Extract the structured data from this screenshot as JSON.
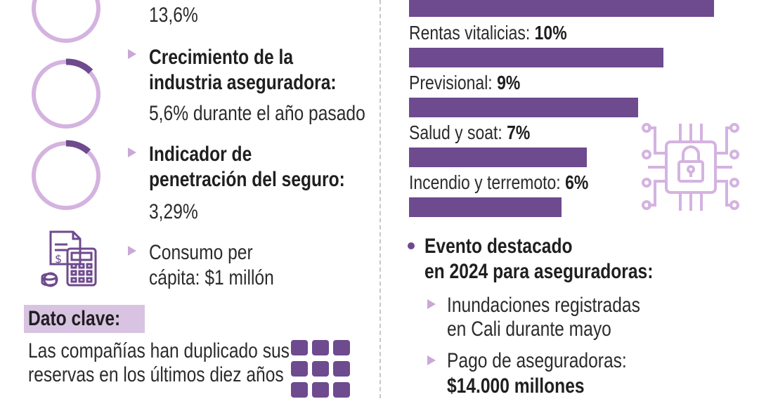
{
  "left": {
    "top_value": "13,6%",
    "items": [
      {
        "title_line1": "Crecimiento de la",
        "title_line2": "industria aseguradora:",
        "value": "5,6%",
        "value_suffix": " durante el año pasado"
      },
      {
        "title_line1": "Indicador de",
        "title_line2": "penetración del seguro:",
        "value": "3,29%"
      }
    ],
    "consumo": {
      "line1": "Consumo per",
      "line2_prefix": "cápita: ",
      "line2_value": "$1 millón"
    },
    "dato_clave": {
      "label": "Dato clave:",
      "line1": "Las compañías han duplicado sus",
      "line2": "reservas en los últimos diez años"
    }
  },
  "right": {
    "bars": [
      {
        "label": "Rentas vitalicias: ",
        "value_text": "10%",
        "value": 10
      },
      {
        "label": "Previsional: ",
        "value_text": "9%",
        "value": 9
      },
      {
        "label": "Salud y soat: ",
        "value_text": "7%",
        "value": 7
      },
      {
        "label": "Incendio y terremoto: ",
        "value_text": "6%",
        "value": 6
      }
    ],
    "evento": {
      "title_line1": "Evento destacado",
      "title_line2": "en 2024 para aseguradoras:",
      "items": [
        {
          "line1": "Inundaciones registradas",
          "line2": "en Cali durante mayo"
        },
        {
          "line1": "Pago de aseguradoras:",
          "line2": "$14.000 millones"
        }
      ]
    }
  },
  "colors": {
    "accent": "#6e4a8e",
    "light_accent": "#d8c3e3",
    "ring": "#d4b3e0"
  },
  "icons": [
    "ring-indicator-icon",
    "calculator-money-icon",
    "circuit-lock-icon",
    "grid-squares-icon"
  ]
}
